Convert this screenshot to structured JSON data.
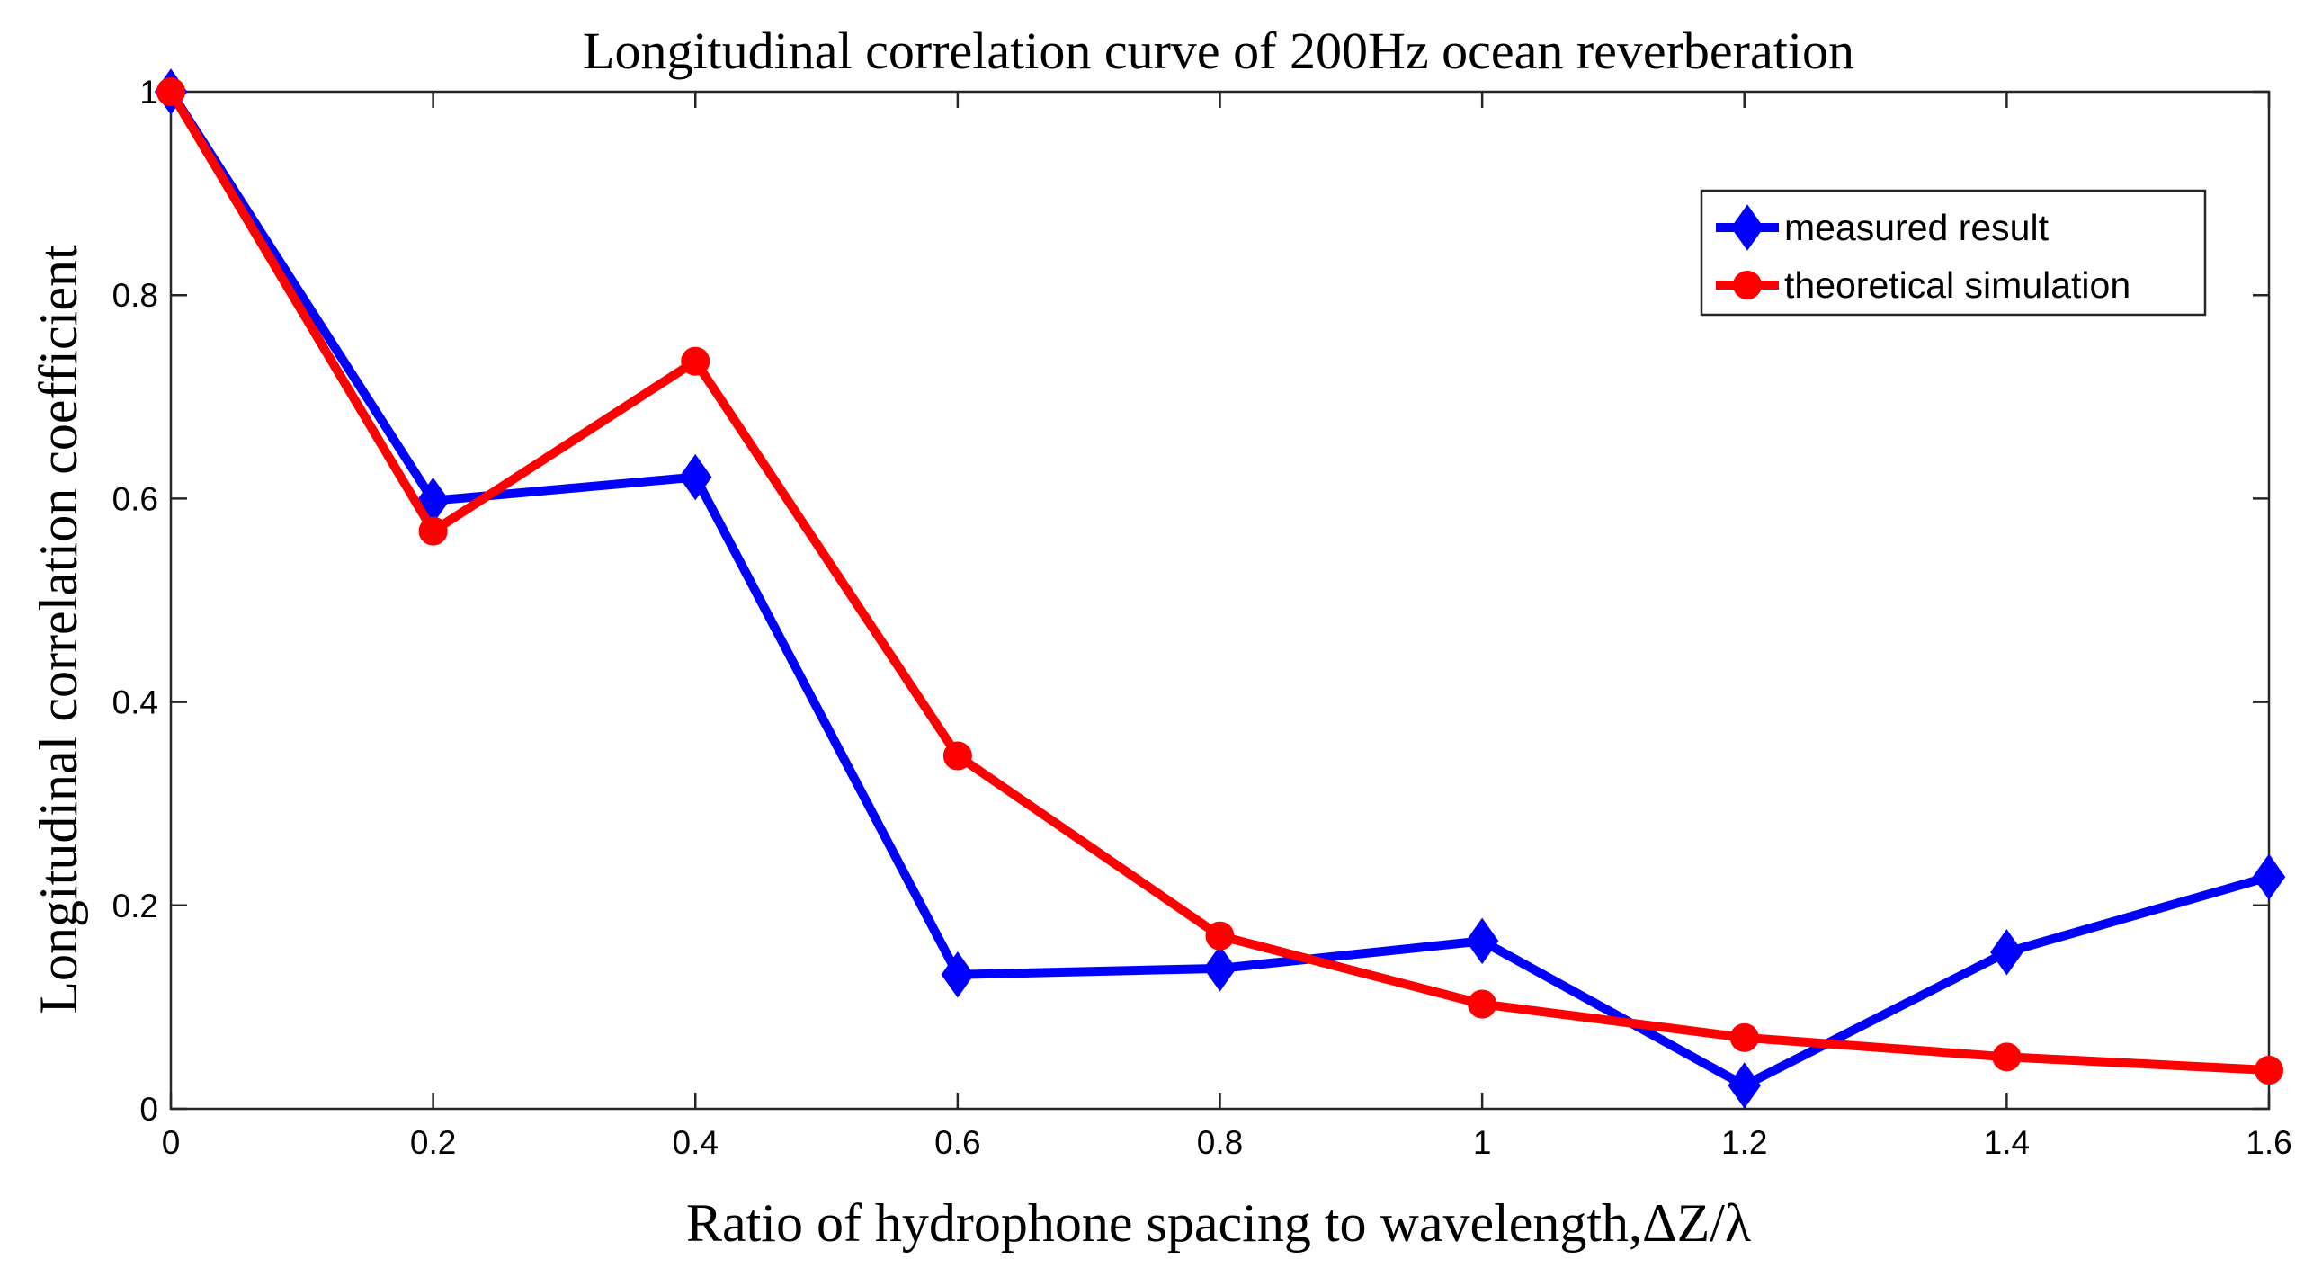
{
  "chart_data": {
    "type": "line",
    "title": "Longitudinal correlation curve of 200Hz ocean reverberation",
    "xlabel": "Ratio of hydrophone spacing to wavelength,ΔZ/λ",
    "ylabel": "Longitudinal correlation coefficient",
    "xlim": [
      0,
      1.6
    ],
    "ylim": [
      0,
      1
    ],
    "x_ticks": [
      0,
      0.2,
      0.4,
      0.6,
      0.8,
      1,
      1.2,
      1.4,
      1.6
    ],
    "x_tick_labels": [
      "0",
      "0.2",
      "0.4",
      "0.6",
      "0.8",
      "1",
      "1.2",
      "1.4",
      "1.6"
    ],
    "y_ticks": [
      0,
      0.2,
      0.4,
      0.6,
      0.8,
      1
    ],
    "y_tick_labels": [
      "0",
      "0.2",
      "0.4",
      "0.6",
      "0.8",
      "1"
    ],
    "x": [
      0,
      0.2,
      0.4,
      0.6,
      0.8,
      1.0,
      1.2,
      1.4,
      1.6
    ],
    "grid": false,
    "legend_position": "top-right",
    "series": [
      {
        "name": "measured result",
        "color": "#0000ff",
        "marker": "diamond",
        "values": [
          1.0,
          0.598,
          0.621,
          0.132,
          0.138,
          0.165,
          0.023,
          0.154,
          0.228
        ]
      },
      {
        "name": "theoretical simulation",
        "color": "#ff0000",
        "marker": "circle",
        "values": [
          1.0,
          0.568,
          0.735,
          0.347,
          0.17,
          0.103,
          0.07,
          0.051,
          0.038
        ]
      }
    ]
  }
}
